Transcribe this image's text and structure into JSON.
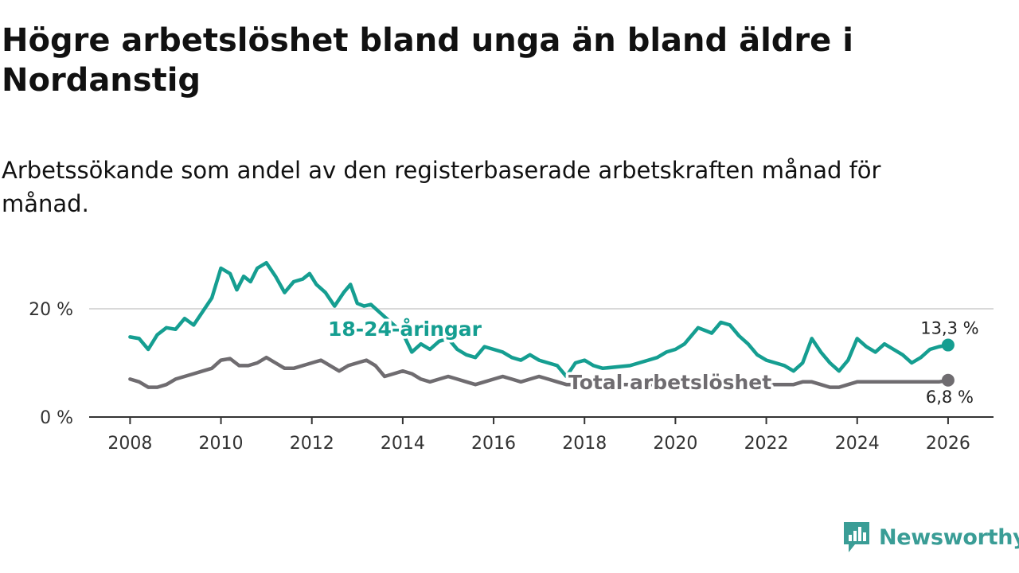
{
  "header": {
    "title": "Högre arbetslöshet bland unga än bland äldre i Nordanstig",
    "subtitle": "Arbetssökande som andel av den registerbaserade arbetskraften månad för månad."
  },
  "brand": {
    "name": "Newsworthy",
    "color": "#3a9d96",
    "icon": "newsworthy-logo-icon"
  },
  "chart_data": {
    "type": "line",
    "title": "Högre arbetslöshet bland unga än bland äldre i Nordanstig",
    "subtitle": "Arbetssökande som andel av den registerbaserade arbetskraften månad för månad.",
    "xlabel": "",
    "ylabel": "",
    "xlim": [
      2007.1,
      2027.0
    ],
    "ylim": [
      0,
      30
    ],
    "x_ticks": [
      2008,
      2010,
      2012,
      2014,
      2016,
      2018,
      2020,
      2022,
      2024,
      2026
    ],
    "x_tick_labels": [
      "2008",
      "2010",
      "2012",
      "2014",
      "2016",
      "2018",
      "2020",
      "2022",
      "2024",
      "2026"
    ],
    "y_ticks": [
      0,
      20
    ],
    "y_tick_labels": [
      "0 %",
      "20 %"
    ],
    "grid": "horizontal",
    "series": [
      {
        "name": "18-24-åringar",
        "label": "18-24-åringar",
        "color": "#159e91",
        "end_label": "13,3 %",
        "points": [
          [
            2008.0,
            14.8
          ],
          [
            2008.2,
            14.5
          ],
          [
            2008.4,
            12.5
          ],
          [
            2008.6,
            15.2
          ],
          [
            2008.8,
            16.5
          ],
          [
            2009.0,
            16.2
          ],
          [
            2009.2,
            18.2
          ],
          [
            2009.4,
            17.0
          ],
          [
            2009.6,
            19.5
          ],
          [
            2009.8,
            22.0
          ],
          [
            2010.0,
            27.5
          ],
          [
            2010.2,
            26.5
          ],
          [
            2010.35,
            23.5
          ],
          [
            2010.5,
            26.0
          ],
          [
            2010.65,
            25.0
          ],
          [
            2010.8,
            27.5
          ],
          [
            2011.0,
            28.5
          ],
          [
            2011.2,
            26.0
          ],
          [
            2011.4,
            23.0
          ],
          [
            2011.6,
            25.0
          ],
          [
            2011.8,
            25.5
          ],
          [
            2011.95,
            26.5
          ],
          [
            2012.1,
            24.5
          ],
          [
            2012.3,
            23.0
          ],
          [
            2012.5,
            20.5
          ],
          [
            2012.7,
            23.0
          ],
          [
            2012.85,
            24.5
          ],
          [
            2013.0,
            21.0
          ],
          [
            2013.15,
            20.5
          ],
          [
            2013.3,
            20.8
          ],
          [
            2014.0,
            15.5
          ],
          [
            2014.2,
            12.0
          ],
          [
            2014.4,
            13.5
          ],
          [
            2014.6,
            12.5
          ],
          [
            2014.8,
            14.0
          ],
          [
            2015.0,
            14.5
          ],
          [
            2015.2,
            12.5
          ],
          [
            2015.4,
            11.5
          ],
          [
            2015.6,
            11.0
          ],
          [
            2015.8,
            13.0
          ],
          [
            2016.0,
            12.5
          ],
          [
            2016.2,
            12.0
          ],
          [
            2016.4,
            11.0
          ],
          [
            2016.6,
            10.5
          ],
          [
            2016.8,
            11.5
          ],
          [
            2017.0,
            10.5
          ],
          [
            2017.2,
            10.0
          ],
          [
            2017.4,
            9.5
          ],
          [
            2017.6,
            7.5
          ],
          [
            2017.8,
            10.0
          ],
          [
            2018.0,
            10.5
          ],
          [
            2018.2,
            9.5
          ],
          [
            2018.4,
            9.0
          ],
          [
            2019.0,
            9.5
          ],
          [
            2019.2,
            10.0
          ],
          [
            2019.4,
            10.5
          ],
          [
            2019.6,
            11.0
          ],
          [
            2019.8,
            12.0
          ],
          [
            2020.0,
            12.5
          ],
          [
            2020.2,
            13.5
          ],
          [
            2020.5,
            16.5
          ],
          [
            2020.8,
            15.5
          ],
          [
            2021.0,
            17.5
          ],
          [
            2021.2,
            17.0
          ],
          [
            2021.4,
            15.0
          ],
          [
            2021.6,
            13.5
          ],
          [
            2021.8,
            11.5
          ],
          [
            2022.0,
            10.5
          ],
          [
            2022.2,
            10.0
          ],
          [
            2022.4,
            9.5
          ],
          [
            2022.6,
            8.5
          ],
          [
            2022.8,
            10.0
          ],
          [
            2023.0,
            14.5
          ],
          [
            2023.2,
            12.0
          ],
          [
            2023.4,
            10.0
          ],
          [
            2023.6,
            8.5
          ],
          [
            2023.8,
            10.5
          ],
          [
            2024.0,
            14.5
          ],
          [
            2024.2,
            13.0
          ],
          [
            2024.4,
            12.0
          ],
          [
            2024.6,
            13.5
          ],
          [
            2024.8,
            12.5
          ],
          [
            2025.0,
            11.5
          ],
          [
            2025.2,
            10.0
          ],
          [
            2025.4,
            11.0
          ],
          [
            2025.6,
            12.5
          ],
          [
            2025.8,
            13.0
          ],
          [
            2026.0,
            13.3
          ]
        ]
      },
      {
        "name": "Total arbetslöshet",
        "label": "Total arbetslöshet",
        "color": "#6f6c70",
        "end_label": "6,8 %",
        "points": [
          [
            2008.0,
            7.0
          ],
          [
            2008.2,
            6.5
          ],
          [
            2008.4,
            5.5
          ],
          [
            2008.6,
            5.5
          ],
          [
            2008.8,
            6.0
          ],
          [
            2009.0,
            7.0
          ],
          [
            2009.2,
            7.5
          ],
          [
            2009.4,
            8.0
          ],
          [
            2009.6,
            8.5
          ],
          [
            2009.8,
            9.0
          ],
          [
            2010.0,
            10.5
          ],
          [
            2010.2,
            10.8
          ],
          [
            2010.4,
            9.5
          ],
          [
            2010.6,
            9.5
          ],
          [
            2010.8,
            10.0
          ],
          [
            2011.0,
            11.0
          ],
          [
            2011.2,
            10.0
          ],
          [
            2011.4,
            9.0
          ],
          [
            2011.6,
            9.0
          ],
          [
            2011.8,
            9.5
          ],
          [
            2012.0,
            10.0
          ],
          [
            2012.2,
            10.5
          ],
          [
            2012.4,
            9.5
          ],
          [
            2012.6,
            8.5
          ],
          [
            2012.8,
            9.5
          ],
          [
            2013.0,
            10.0
          ],
          [
            2013.2,
            10.5
          ],
          [
            2013.4,
            9.5
          ],
          [
            2013.6,
            7.5
          ],
          [
            2013.8,
            8.0
          ],
          [
            2014.0,
            8.5
          ],
          [
            2014.2,
            8.0
          ],
          [
            2014.4,
            7.0
          ],
          [
            2014.6,
            6.5
          ],
          [
            2014.8,
            7.0
          ],
          [
            2015.0,
            7.5
          ],
          [
            2015.2,
            7.0
          ],
          [
            2015.4,
            6.5
          ],
          [
            2015.6,
            6.0
          ],
          [
            2015.8,
            6.5
          ],
          [
            2016.0,
            7.0
          ],
          [
            2016.2,
            7.5
          ],
          [
            2016.4,
            7.0
          ],
          [
            2016.6,
            6.5
          ],
          [
            2016.8,
            7.0
          ],
          [
            2017.0,
            7.5
          ],
          [
            2017.2,
            7.0
          ],
          [
            2017.4,
            6.5
          ],
          [
            2017.6,
            6.0
          ],
          [
            2022.6,
            6.0
          ],
          [
            2022.8,
            6.5
          ],
          [
            2023.0,
            6.5
          ],
          [
            2023.2,
            6.0
          ],
          [
            2023.4,
            5.5
          ],
          [
            2023.6,
            5.5
          ],
          [
            2023.8,
            6.0
          ],
          [
            2024.0,
            6.5
          ],
          [
            2024.2,
            6.5
          ],
          [
            2024.4,
            6.5
          ],
          [
            2024.6,
            6.5
          ],
          [
            2024.8,
            6.5
          ],
          [
            2025.0,
            6.5
          ],
          [
            2025.2,
            6.5
          ],
          [
            2025.4,
            6.5
          ],
          [
            2025.6,
            6.5
          ],
          [
            2025.8,
            6.5
          ],
          [
            2026.0,
            6.8
          ]
        ]
      }
    ]
  }
}
